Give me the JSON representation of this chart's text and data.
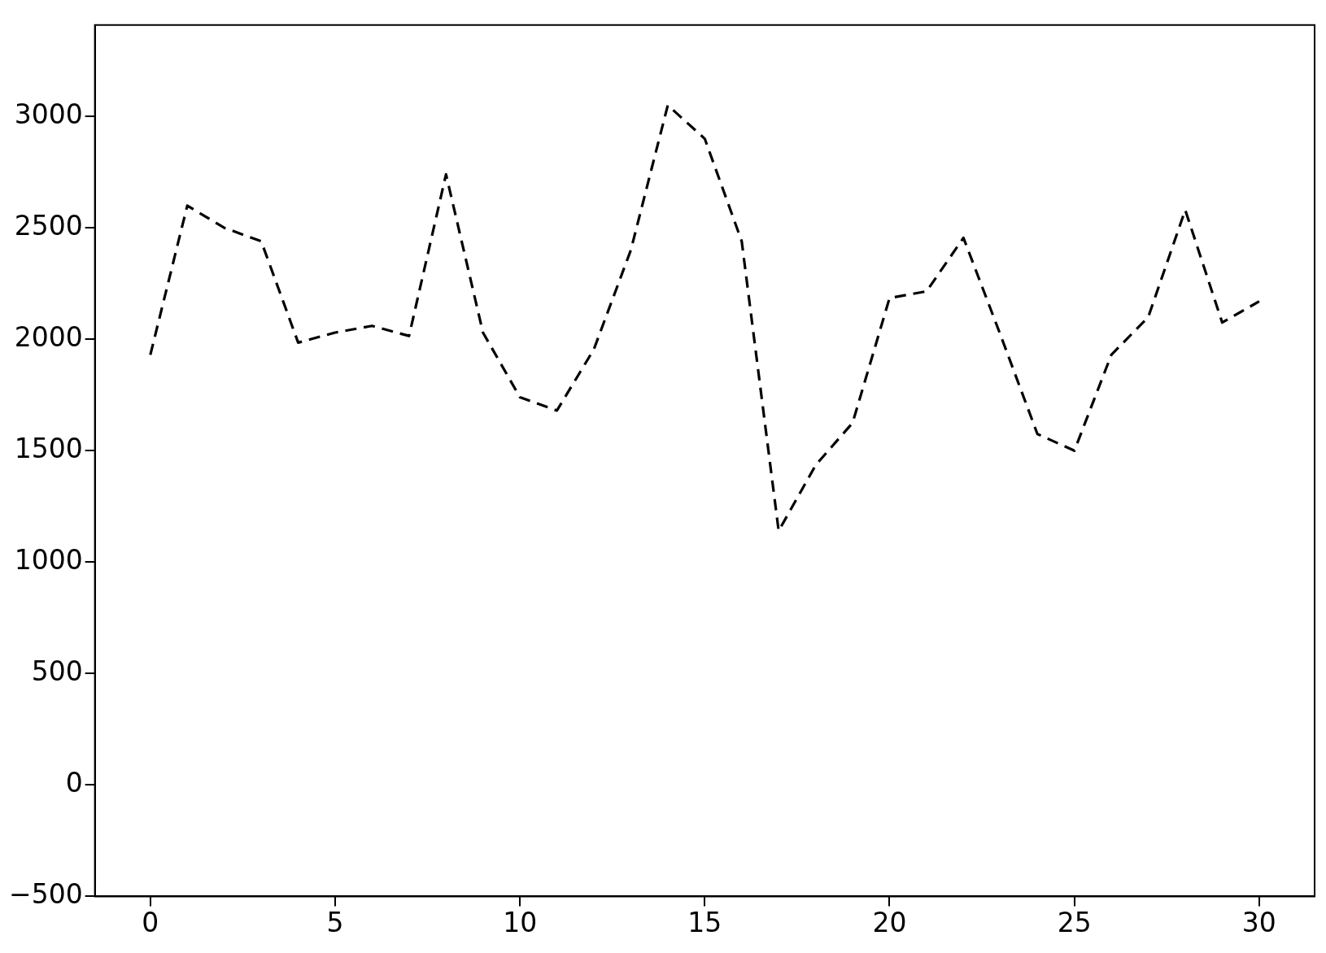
{
  "chart_data": {
    "type": "line",
    "x": [
      0,
      1,
      2,
      3,
      4,
      5,
      6,
      7,
      8,
      9,
      10,
      11,
      12,
      13,
      14,
      15,
      16,
      17,
      18,
      19,
      20,
      21,
      22,
      23,
      24,
      25,
      26,
      27,
      28,
      29,
      30
    ],
    "series": [
      {
        "color": "#000000",
        "values": [
          1930,
          2600,
          2500,
          2440,
          1985,
          2030,
          2060,
          2015,
          2740,
          2030,
          1740,
          1680,
          1955,
          2400,
          3050,
          2900,
          2440,
          1140,
          1435,
          1625,
          2185,
          2215,
          2455,
          2020,
          1575,
          1500,
          1930,
          2100,
          2580,
          2075,
          2170
        ]
      }
    ],
    "xlim": [
      -1.5,
      31.5
    ],
    "xticks": [
      0,
      5,
      10,
      15,
      20,
      25,
      30
    ],
    "ylim": [
      -500,
      3410
    ],
    "yticks": [
      -500,
      0,
      500,
      1000,
      1500,
      2000,
      2500,
      3000
    ],
    "grid": false,
    "legend": false,
    "marker": "none",
    "line_style": "dashed"
  }
}
